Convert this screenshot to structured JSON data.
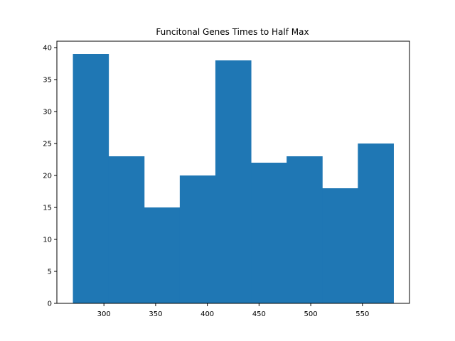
{
  "chart_data": {
    "type": "bar",
    "title": "Funcitonal Genes Times to Half Max",
    "xlabel": "",
    "ylabel": "",
    "bin_edges": [
      270,
      304.44,
      338.89,
      373.33,
      407.78,
      442.22,
      476.67,
      511.11,
      545.56,
      580
    ],
    "values": [
      39,
      23,
      15,
      20,
      38,
      22,
      23,
      18,
      25
    ],
    "xlim": [
      254.5,
      595.5
    ],
    "ylim": [
      0,
      41
    ],
    "xticks": [
      300,
      350,
      400,
      450,
      500,
      550
    ],
    "yticks": [
      0,
      5,
      10,
      15,
      20,
      25,
      30,
      35,
      40
    ],
    "grid": false,
    "bar_color": "#1f77b4"
  }
}
